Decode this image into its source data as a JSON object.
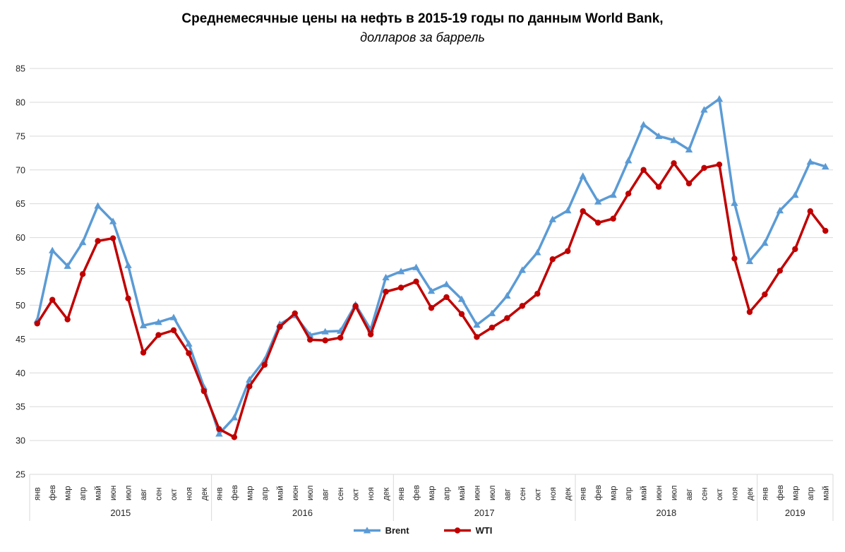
{
  "chart_data": {
    "type": "line",
    "title": "Среднемесячные цены на нефть в 2015-19 годы по данным World Bank,",
    "subtitle": "долларов за баррель",
    "y_axis": {
      "min": 25,
      "max": 85,
      "step": 5
    },
    "ylim": [
      25,
      85
    ],
    "grid": true,
    "legend_position": "bottom",
    "month_labels": [
      "янв",
      "фев",
      "мар",
      "апр",
      "май",
      "июн",
      "июл",
      "авг",
      "сен",
      "окт",
      "ноя",
      "дек"
    ],
    "year_groups": [
      {
        "label": "2015",
        "months": 12
      },
      {
        "label": "2016",
        "months": 12
      },
      {
        "label": "2017",
        "months": 12
      },
      {
        "label": "2018",
        "months": 12
      },
      {
        "label": "2019",
        "months": 5
      }
    ],
    "series": [
      {
        "name": "Brent",
        "color": "#5B9BD5",
        "marker": "triangle",
        "values": [
          47.8,
          58.1,
          55.8,
          59.3,
          64.7,
          62.4,
          55.9,
          47.0,
          47.5,
          48.2,
          44.3,
          37.9,
          31.0,
          33.4,
          39.0,
          41.9,
          47.2,
          48.5,
          45.6,
          46.1,
          46.2,
          50.1,
          46.4,
          54.1,
          55.0,
          55.6,
          52.1,
          53.1,
          50.9,
          47.1,
          48.8,
          51.4,
          55.2,
          57.8,
          62.7,
          64.0,
          69.1,
          65.3,
          66.3,
          71.4,
          76.7,
          75.0,
          74.4,
          73.0,
          78.9,
          80.5,
          65.1,
          56.5,
          59.2,
          64.0,
          66.3,
          71.2,
          70.5
        ]
      },
      {
        "name": "WTI",
        "color": "#C00000",
        "marker": "circle",
        "values": [
          47.3,
          50.8,
          47.9,
          54.6,
          59.5,
          59.9,
          51.0,
          43.0,
          45.6,
          46.3,
          42.9,
          37.3,
          31.7,
          30.5,
          38.0,
          41.2,
          46.8,
          48.8,
          44.9,
          44.8,
          45.2,
          49.9,
          45.7,
          52.0,
          52.6,
          53.5,
          49.6,
          51.2,
          48.7,
          45.3,
          46.7,
          48.1,
          49.9,
          51.7,
          56.8,
          58.0,
          63.9,
          62.2,
          62.8,
          66.5,
          70.0,
          67.5,
          71.0,
          68.0,
          70.3,
          70.8,
          56.9,
          49.0,
          51.6,
          55.1,
          58.3,
          63.9,
          61.0
        ]
      }
    ],
    "colors": {
      "gridline": "#D9D9D9",
      "axis_text": "#262626",
      "background": "#FFFFFF"
    }
  }
}
